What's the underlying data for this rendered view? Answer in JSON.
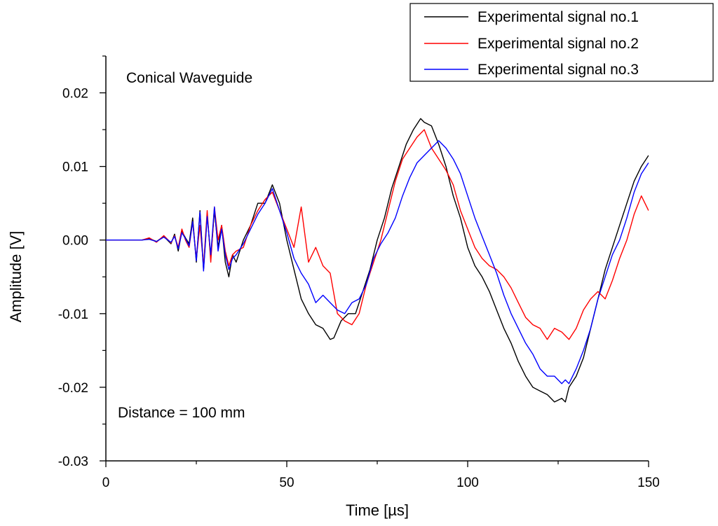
{
  "chart_data": {
    "type": "line",
    "title": "",
    "xlabel": "Time [µs]",
    "ylabel": "Amplitude [V]",
    "xlim": [
      0,
      150
    ],
    "ylim": [
      -0.03,
      0.025
    ],
    "xticks": [
      0,
      50,
      100,
      150
    ],
    "xtick_labels": [
      "0",
      "50",
      "100",
      "150"
    ],
    "yticks": [
      -0.03,
      -0.02,
      -0.01,
      0.0,
      0.01,
      0.02
    ],
    "ytick_labels": [
      "-0.03",
      "-0.02",
      "-0.01",
      "0.00",
      "0.01",
      "0.02"
    ],
    "grid": false,
    "legend_position": "top-right",
    "annotations": [
      {
        "id": "waveguide",
        "text": "Conical Waveguide"
      },
      {
        "id": "distance",
        "text": "Distance = 100 mm"
      }
    ],
    "series": [
      {
        "name": "Experimental signal no.1",
        "color": "#000000",
        "x": [
          0,
          10,
          12,
          14,
          16,
          18,
          19,
          20,
          21,
          22,
          23,
          24,
          25,
          26,
          27,
          28,
          29,
          30,
          31,
          32,
          33,
          34,
          35,
          36,
          38,
          40,
          42,
          44,
          46,
          48,
          50,
          52,
          54,
          56,
          58,
          60,
          62,
          63,
          65,
          67,
          69,
          71,
          73,
          75,
          77,
          79,
          81,
          83,
          85,
          87,
          88,
          90,
          92,
          94,
          96,
          98,
          100,
          102,
          104,
          106,
          108,
          110,
          112,
          114,
          116,
          118,
          120,
          122,
          124,
          126,
          127,
          128,
          130,
          132,
          134,
          136,
          138,
          140,
          142,
          144,
          146,
          148,
          150
        ],
        "y": [
          0,
          0,
          0.0002,
          -0.0002,
          0.0005,
          -0.0005,
          0.0008,
          -0.0015,
          0.0012,
          0.0003,
          -0.0005,
          0.003,
          -0.003,
          0.004,
          -0.004,
          0.0035,
          -0.0025,
          0.004,
          -0.001,
          0.002,
          -0.003,
          -0.005,
          -0.002,
          -0.003,
          0.0,
          0.002,
          0.005,
          0.005,
          0.0075,
          0.005,
          0.0,
          -0.004,
          -0.008,
          -0.01,
          -0.0115,
          -0.012,
          -0.0135,
          -0.0133,
          -0.011,
          -0.01,
          -0.01,
          -0.007,
          -0.004,
          0.0,
          0.003,
          0.007,
          0.01,
          0.013,
          0.015,
          0.0165,
          0.016,
          0.0155,
          0.013,
          0.01,
          0.006,
          0.003,
          -0.001,
          -0.0035,
          -0.005,
          -0.007,
          -0.0095,
          -0.012,
          -0.014,
          -0.0165,
          -0.0185,
          -0.02,
          -0.0205,
          -0.021,
          -0.022,
          -0.0215,
          -0.022,
          -0.02,
          -0.0185,
          -0.016,
          -0.012,
          -0.008,
          -0.004,
          -0.001,
          0.002,
          0.005,
          0.008,
          0.01,
          0.0115
        ]
      },
      {
        "name": "Experimental signal no.2",
        "color": "#ff0000",
        "x": [
          0,
          10,
          12,
          14,
          16,
          18,
          19,
          20,
          21,
          22,
          23,
          24,
          25,
          26,
          27,
          28,
          29,
          30,
          31,
          32,
          33,
          34,
          35,
          36,
          38,
          40,
          42,
          44,
          46,
          48,
          50,
          52,
          54,
          56,
          58,
          60,
          62,
          64,
          66,
          68,
          70,
          72,
          74,
          76,
          78,
          80,
          82,
          84,
          86,
          88,
          90,
          92,
          94,
          96,
          98,
          100,
          102,
          104,
          106,
          108,
          110,
          112,
          114,
          116,
          118,
          120,
          122,
          124,
          126,
          128,
          130,
          132,
          134,
          136,
          138,
          140,
          142,
          144,
          146,
          148,
          150
        ],
        "y": [
          0,
          0,
          0.0003,
          -0.0003,
          0.0006,
          -0.0004,
          0.0006,
          -0.001,
          0.0015,
          0.0,
          -0.001,
          0.0025,
          -0.0025,
          0.002,
          -0.0035,
          0.004,
          -0.003,
          0.0045,
          0.0,
          0.002,
          -0.0015,
          -0.0035,
          -0.002,
          -0.0015,
          -0.001,
          0.002,
          0.004,
          0.0055,
          0.0065,
          0.004,
          0.0015,
          -0.001,
          0.0045,
          -0.003,
          -0.001,
          -0.0035,
          -0.0045,
          -0.01,
          -0.011,
          -0.0115,
          -0.01,
          -0.006,
          -0.003,
          0.0,
          0.004,
          0.008,
          0.011,
          0.0125,
          0.014,
          0.015,
          0.0125,
          0.011,
          0.0095,
          0.0075,
          0.004,
          0.0015,
          -0.001,
          -0.0025,
          -0.0035,
          -0.004,
          -0.005,
          -0.0065,
          -0.0085,
          -0.0105,
          -0.0115,
          -0.012,
          -0.0135,
          -0.012,
          -0.0125,
          -0.0135,
          -0.012,
          -0.0095,
          -0.008,
          -0.007,
          -0.008,
          -0.0055,
          -0.0025,
          0.0,
          0.0035,
          0.006,
          0.004
        ]
      },
      {
        "name": "Experimental signal no.3",
        "color": "#0000ff",
        "x": [
          0,
          10,
          12,
          14,
          16,
          18,
          19,
          20,
          21,
          22,
          23,
          24,
          25,
          26,
          27,
          28,
          29,
          30,
          31,
          32,
          33,
          34,
          35,
          36,
          38,
          40,
          42,
          44,
          46,
          48,
          50,
          52,
          54,
          56,
          58,
          60,
          62,
          64,
          66,
          68,
          70,
          72,
          74,
          76,
          78,
          80,
          82,
          84,
          86,
          88,
          90,
          92,
          94,
          96,
          98,
          100,
          102,
          104,
          106,
          108,
          110,
          112,
          114,
          116,
          118,
          120,
          122,
          124,
          126,
          127,
          128,
          130,
          132,
          134,
          136,
          138,
          140,
          142,
          144,
          146,
          148,
          150
        ],
        "y": [
          0,
          0,
          0.0001,
          -0.0002,
          0.0004,
          -0.0003,
          0.0005,
          -0.0012,
          0.001,
          0.0002,
          -0.0008,
          0.0025,
          -0.0028,
          0.0038,
          -0.0042,
          0.0032,
          -0.002,
          0.0045,
          -0.0015,
          0.0015,
          -0.002,
          -0.004,
          -0.0025,
          -0.002,
          -0.0005,
          0.0015,
          0.0035,
          0.005,
          0.007,
          0.004,
          0.001,
          -0.0025,
          -0.0045,
          -0.006,
          -0.0085,
          -0.0075,
          -0.0085,
          -0.0095,
          -0.01,
          -0.0085,
          -0.008,
          -0.006,
          -0.0025,
          -0.0005,
          0.001,
          0.003,
          0.006,
          0.0085,
          0.0105,
          0.0115,
          0.0125,
          0.0135,
          0.0125,
          0.011,
          0.009,
          0.006,
          0.003,
          0.0005,
          -0.002,
          -0.0045,
          -0.0075,
          -0.01,
          -0.012,
          -0.014,
          -0.0155,
          -0.0175,
          -0.0185,
          -0.0185,
          -0.0195,
          -0.019,
          -0.0195,
          -0.0175,
          -0.015,
          -0.012,
          -0.008,
          -0.005,
          -0.002,
          0.0,
          0.003,
          0.0065,
          0.009,
          0.0105
        ]
      }
    ]
  }
}
